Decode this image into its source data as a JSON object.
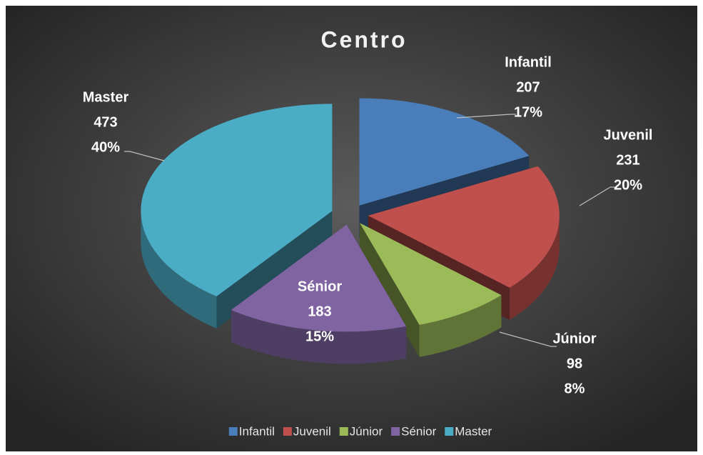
{
  "chart_data": {
    "type": "pie3d",
    "title": "Centro",
    "categories": [
      "Infantil",
      "Juvenil",
      "Júnior",
      "Sénior",
      "Master"
    ],
    "values": [
      207,
      231,
      98,
      183,
      473
    ],
    "percent_labels": [
      "17%",
      "20%",
      "8%",
      "15%",
      "40%"
    ],
    "colors": [
      "#4a7ebb",
      "#c0504d",
      "#9bbb59",
      "#8064a2",
      "#4bacc6"
    ],
    "legend": "bottom"
  }
}
